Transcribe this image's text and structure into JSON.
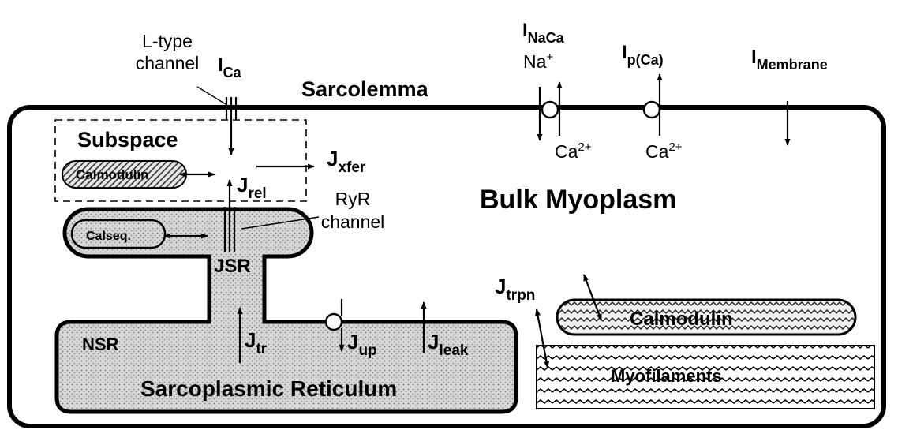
{
  "labels": {
    "ltype_line1": "L-type",
    "ltype_line2": "channel",
    "ica_main": "I",
    "ica_sub": "Ca",
    "sarcolemma": "Sarcolemma",
    "inaca_main": "I",
    "inaca_sub": "NaCa",
    "na_main": "Na",
    "na_sup": "+",
    "ca1_main": "Ca",
    "ca1_sup": "2+",
    "ipca_main": "I",
    "ipca_sub": "p(Ca)",
    "ca2_main": "Ca",
    "ca2_sup": "2+",
    "imem_main": "I",
    "imem_sub": "Membrane",
    "subspace": "Subspace",
    "calmodulin_sub": "Calmodulin",
    "jrel_main": "J",
    "jrel_sub": "rel",
    "jxfer_main": "J",
    "jxfer_sub": "xfer",
    "bulk": "Bulk Myoplasm",
    "calseq": "Calseq.",
    "ryr_line1": "RyR",
    "ryr_line2": "channel",
    "jsr": "JSR",
    "nsr": "NSR",
    "jtr_main": "J",
    "jtr_sub": "tr",
    "jup_main": "J",
    "jup_sub": "up",
    "jleak_main": "J",
    "jleak_sub": "leak",
    "sr": "Sarcoplasmic Reticulum",
    "jtrpn_main": "J",
    "jtrpn_sub": "trpn",
    "calmodulin_bulk": "Calmodulin",
    "myofilaments": "Myofilaments"
  },
  "colors": {
    "stroke": "#000000",
    "stipple_bg": "#d8d8d8",
    "stipple_dot": "#7a7a7a",
    "background": "#ffffff"
  }
}
